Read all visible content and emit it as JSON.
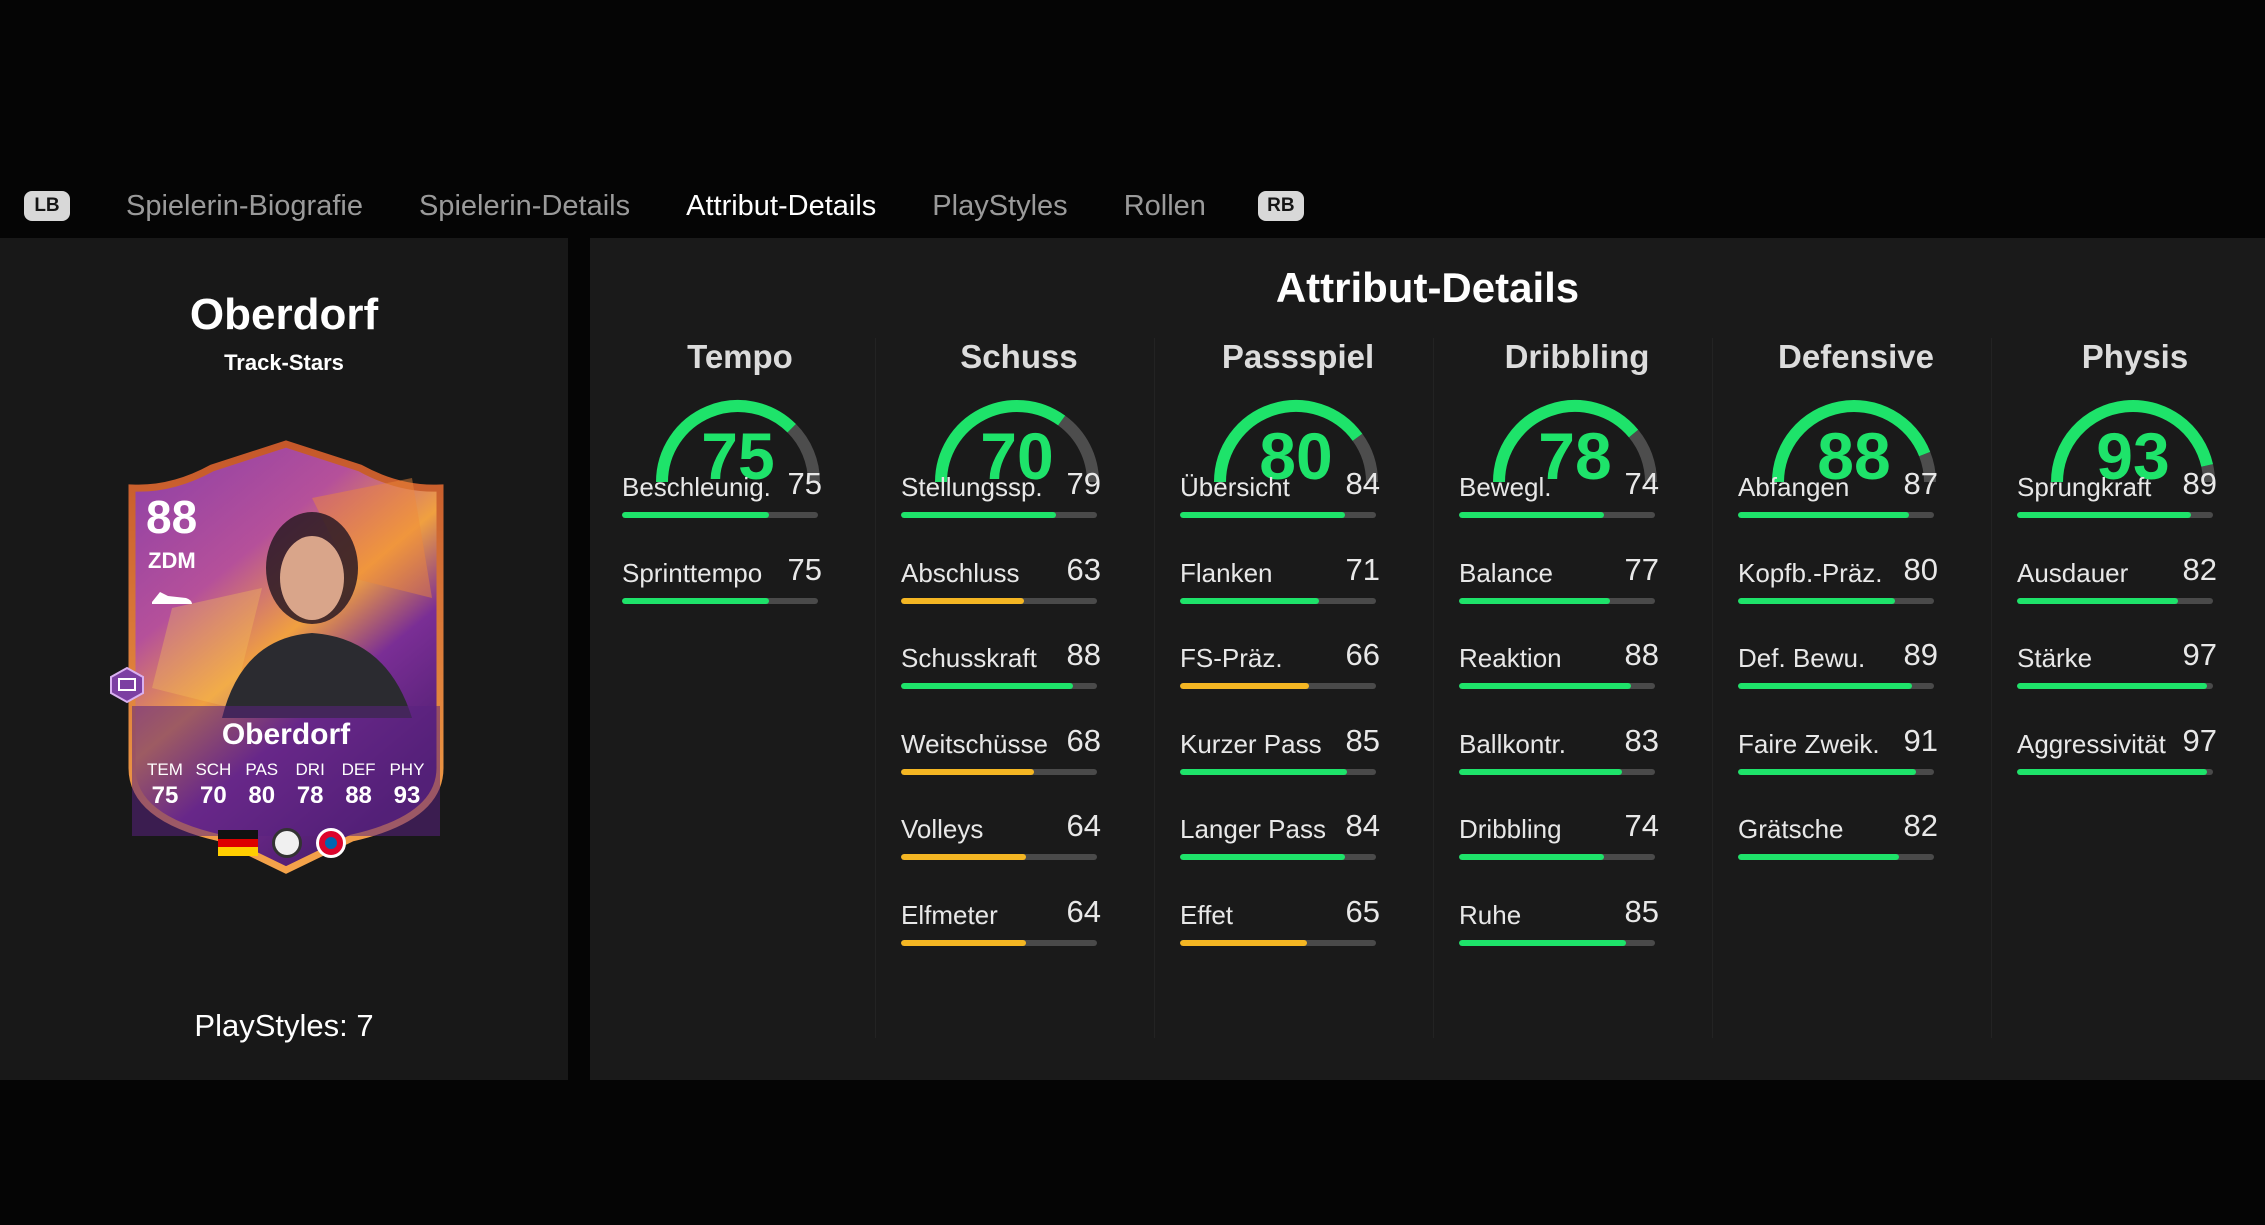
{
  "colors": {
    "green": "#1ee36a",
    "yellow": "#f4b623",
    "gauge_track": "#4d4d4d",
    "card_purple": "#6a2b8f",
    "card_orange": "#e6742a"
  },
  "tabs": {
    "lb_hint": "LB",
    "rb_hint": "RB",
    "items": [
      {
        "label": "Spielerin-Biografie",
        "active": false
      },
      {
        "label": "Spielerin-Details",
        "active": false
      },
      {
        "label": "Attribut-Details",
        "active": true
      },
      {
        "label": "PlayStyles",
        "active": false
      },
      {
        "label": "Rollen",
        "active": false
      }
    ]
  },
  "player": {
    "name": "Oberdorf",
    "version": "Track-Stars",
    "playstyles_label": "PlayStyles: 7"
  },
  "card": {
    "rating": "88",
    "position": "ZDM",
    "name": "Oberdorf",
    "stats": [
      {
        "label": "TEM",
        "value": "75"
      },
      {
        "label": "SCH",
        "value": "70"
      },
      {
        "label": "PAS",
        "value": "80"
      },
      {
        "label": "DRI",
        "value": "78"
      },
      {
        "label": "DEF",
        "value": "88"
      },
      {
        "label": "PHY",
        "value": "93"
      }
    ],
    "icons": [
      "boot-icon",
      "chemistry-style-icon",
      "germany-flag-icon",
      "league-badge-icon",
      "club-badge-icon"
    ]
  },
  "details": {
    "title": "Attribut-Details",
    "categories": [
      {
        "name": "Tempo",
        "value": 75,
        "attributes": [
          {
            "name": "Beschleunig.",
            "value": 75
          },
          {
            "name": "Sprinttempo",
            "value": 75
          }
        ]
      },
      {
        "name": "Schuss",
        "value": 70,
        "attributes": [
          {
            "name": "Stellungssp.",
            "value": 79
          },
          {
            "name": "Abschluss",
            "value": 63
          },
          {
            "name": "Schusskraft",
            "value": 88
          },
          {
            "name": "Weitschüsse",
            "value": 68
          },
          {
            "name": "Volleys",
            "value": 64
          },
          {
            "name": "Elfmeter",
            "value": 64
          }
        ]
      },
      {
        "name": "Passspiel",
        "value": 80,
        "attributes": [
          {
            "name": "Übersicht",
            "value": 84
          },
          {
            "name": "Flanken",
            "value": 71
          },
          {
            "name": "FS-Präz.",
            "value": 66
          },
          {
            "name": "Kurzer Pass",
            "value": 85
          },
          {
            "name": "Langer Pass",
            "value": 84
          },
          {
            "name": "Effet",
            "value": 65
          }
        ]
      },
      {
        "name": "Dribbling",
        "value": 78,
        "attributes": [
          {
            "name": "Bewegl.",
            "value": 74
          },
          {
            "name": "Balance",
            "value": 77
          },
          {
            "name": "Reaktion",
            "value": 88
          },
          {
            "name": "Ballkontr.",
            "value": 83
          },
          {
            "name": "Dribbling",
            "value": 74
          },
          {
            "name": "Ruhe",
            "value": 85
          }
        ]
      },
      {
        "name": "Defensive",
        "value": 88,
        "attributes": [
          {
            "name": "Abfangen",
            "value": 87
          },
          {
            "name": "Kopfb.-Präz.",
            "value": 80
          },
          {
            "name": "Def. Bewu.",
            "value": 89
          },
          {
            "name": "Faire Zweik.",
            "value": 91
          },
          {
            "name": "Grätsche",
            "value": 82
          }
        ]
      },
      {
        "name": "Physis",
        "value": 93,
        "attributes": [
          {
            "name": "Sprungkraft",
            "value": 89
          },
          {
            "name": "Ausdauer",
            "value": 82
          },
          {
            "name": "Stärke",
            "value": 97
          },
          {
            "name": "Aggressivität",
            "value": 97
          }
        ]
      }
    ]
  }
}
